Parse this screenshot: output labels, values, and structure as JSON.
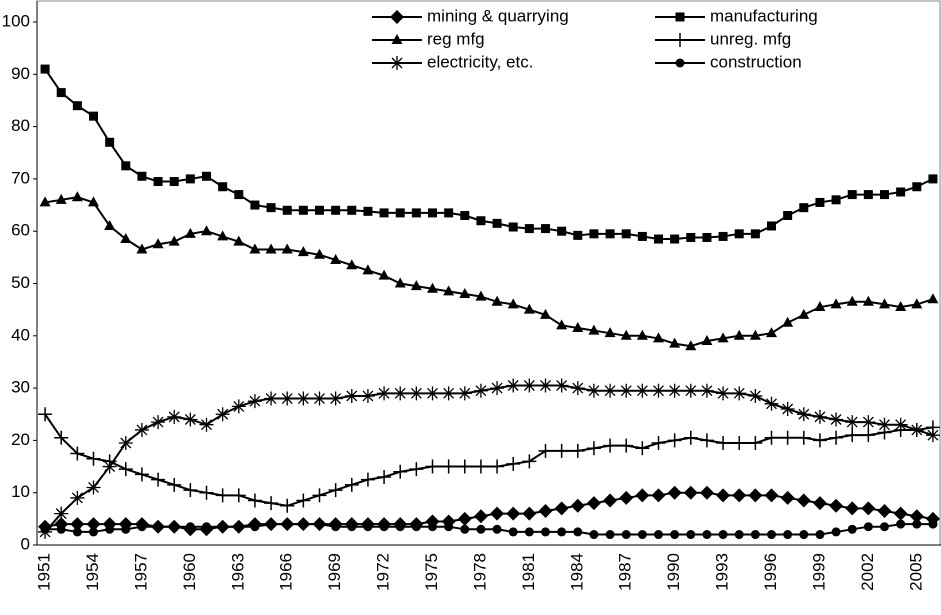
{
  "chart_data": {
    "type": "line",
    "categories": [
      "1951",
      null,
      null,
      "1954",
      null,
      null,
      "1957",
      null,
      null,
      "1960",
      null,
      null,
      "1963",
      null,
      null,
      "1966",
      null,
      null,
      "1969",
      null,
      null,
      "1972",
      null,
      null,
      "1975",
      null,
      null,
      "1978",
      null,
      null,
      "1981",
      null,
      null,
      "1984",
      null,
      null,
      "1987",
      null,
      null,
      "1990",
      null,
      null,
      "1993",
      null,
      null,
      "1996",
      null,
      null,
      "1999",
      null,
      null,
      "2002",
      null,
      null,
      "2005",
      null
    ],
    "ylim": [
      0,
      100
    ],
    "yticks": [
      0,
      10,
      20,
      30,
      40,
      50,
      60,
      70,
      80,
      90,
      100
    ],
    "series": [
      {
        "name": "mining & quarrying",
        "color": "#000000",
        "marker": "diamond",
        "values": [
          3.5,
          4,
          4,
          4,
          4,
          4,
          4,
          3.5,
          3.5,
          3,
          3,
          3.5,
          3.5,
          4,
          4,
          4,
          4,
          4,
          4,
          4,
          4,
          4,
          4,
          4,
          4.5,
          4.5,
          5,
          5.5,
          6,
          6,
          6,
          6.5,
          7,
          7.5,
          8,
          8.5,
          9,
          9.5,
          9.5,
          10,
          10,
          10,
          9.5,
          9.5,
          9.5,
          9.5,
          9,
          8.5,
          8,
          7.5,
          7,
          7,
          6.5,
          6,
          5.5,
          5
        ]
      },
      {
        "name": "manufacturing",
        "color": "#000000",
        "marker": "square",
        "values": [
          91,
          86.5,
          84,
          82,
          77,
          72.5,
          70.5,
          69.5,
          69.5,
          70,
          70.5,
          68.5,
          67,
          65,
          64.5,
          64,
          64,
          64,
          64,
          64,
          63.8,
          63.5,
          63.5,
          63.5,
          63.5,
          63.5,
          63,
          62,
          61.5,
          60.8,
          60.5,
          60.5,
          60,
          59.2,
          59.5,
          59.5,
          59.5,
          59,
          58.5,
          58.5,
          58.8,
          58.8,
          59,
          59.5,
          59.5,
          61,
          63,
          64.5,
          65.5,
          66,
          67,
          67,
          67,
          67.5,
          68.5,
          70
        ]
      },
      {
        "name": "reg mfg",
        "color": "#000000",
        "marker": "triangle",
        "values": [
          65.5,
          66,
          66.5,
          65.5,
          61,
          58.5,
          56.5,
          57.5,
          58,
          59.5,
          60,
          59,
          58,
          56.5,
          56.5,
          56.5,
          56,
          55.5,
          54.5,
          53.5,
          52.5,
          51.5,
          50,
          49.5,
          49,
          48.5,
          48,
          47.5,
          46.5,
          46,
          45,
          44,
          42,
          41.5,
          41,
          40.5,
          40,
          40,
          39.5,
          38.5,
          38,
          39,
          39.5,
          40,
          40,
          40.5,
          42.5,
          44,
          45.5,
          46,
          46.5,
          46.5,
          46,
          45.5,
          46,
          47
        ]
      },
      {
        "name": "unreg. mfg",
        "color": "#000000",
        "marker": "plus",
        "values": [
          25,
          20.5,
          17.5,
          16.5,
          16,
          14.5,
          13.5,
          12.5,
          11.5,
          10.5,
          10,
          9.5,
          9.5,
          8.5,
          8,
          7.5,
          8.5,
          9.5,
          10.5,
          11.5,
          12.5,
          13,
          14,
          14.5,
          15,
          15,
          15,
          15,
          15,
          15.5,
          16,
          18,
          18,
          18,
          18.5,
          19,
          19,
          18.5,
          19.5,
          20,
          20.5,
          20,
          19.5,
          19.5,
          19.5,
          20.5,
          20.5,
          20.5,
          20,
          20.5,
          21,
          21,
          21.5,
          22,
          22,
          22.5
        ]
      },
      {
        "name": "electricity, etc.",
        "color": "#000000",
        "marker": "star",
        "values": [
          2.5,
          6,
          9,
          11,
          15,
          19.5,
          22,
          23.5,
          24.5,
          24,
          23,
          25,
          26.5,
          27.5,
          28,
          28,
          28,
          28,
          28,
          28.5,
          28.5,
          29,
          29,
          29,
          29,
          29,
          29,
          29.5,
          30,
          30.5,
          30.5,
          30.5,
          30.5,
          30,
          29.5,
          29.5,
          29.5,
          29.5,
          29.5,
          29.5,
          29.5,
          29.5,
          29,
          29,
          28.5,
          27,
          26,
          25,
          24.5,
          24,
          23.5,
          23.5,
          23,
          23,
          22,
          21
        ]
      },
      {
        "name": "construction",
        "color": "#000000",
        "marker": "circle",
        "values": [
          3,
          3,
          2.5,
          2.5,
          3,
          3,
          3.5,
          3.5,
          3.5,
          3.5,
          3.5,
          3.5,
          3.5,
          3.5,
          4,
          4,
          4,
          4,
          3.5,
          3.5,
          3.5,
          3.5,
          3.5,
          3.5,
          3.5,
          3.5,
          3,
          3,
          3,
          2.5,
          2.5,
          2.5,
          2.5,
          2.5,
          2,
          2,
          2,
          2,
          2,
          2,
          2,
          2,
          2,
          2,
          2,
          2,
          2,
          2,
          2,
          2.5,
          3,
          3.5,
          3.5,
          4,
          4,
          4
        ]
      }
    ]
  }
}
